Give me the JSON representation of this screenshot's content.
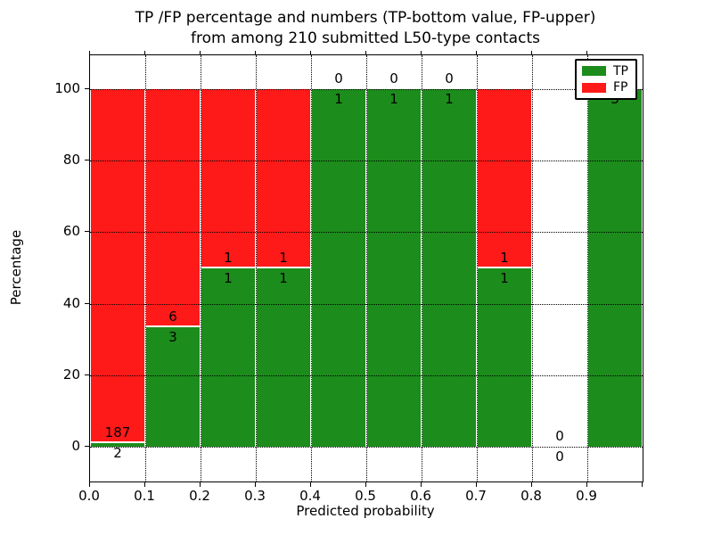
{
  "title": {
    "line1": "TP /FP percentage and numbers (TP-bottom value, FP-upper)",
    "line2": "from among 210 submitted L50-type contacts"
  },
  "axes": {
    "xlabel": "Predicted probability",
    "ylabel": "Percentage",
    "xticks": [
      "0.0",
      "0.1",
      "0.2",
      "0.3",
      "0.4",
      "0.5",
      "0.6",
      "0.7",
      "0.8",
      "0.9"
    ],
    "yticks": [
      "0",
      "20",
      "40",
      "60",
      "80",
      "100"
    ]
  },
  "legend": {
    "items": [
      {
        "label": "TP",
        "color": "#1c8c1c"
      },
      {
        "label": "FP",
        "color": "#ff1a1a"
      }
    ]
  },
  "colors": {
    "tp_green": "#1c8c1c",
    "fp_red": "#ff1a1a",
    "grid": "#000000"
  },
  "chart_data": {
    "type": "bar",
    "stacked": true,
    "normalized_to_percent": true,
    "title": "TP /FP percentage and numbers (TP-bottom value, FP-upper) from among 210 submitted L50-type contacts",
    "xlabel": "Predicted probability",
    "ylabel": "Percentage",
    "xlim": [
      0.0,
      1.0
    ],
    "ylim": [
      -10,
      110
    ],
    "grid": true,
    "legend_position": "upper right",
    "categories": [
      "0.0-0.1",
      "0.1-0.2",
      "0.2-0.3",
      "0.3-0.4",
      "0.4-0.5",
      "0.5-0.6",
      "0.6-0.7",
      "0.7-0.8",
      "0.8-0.9",
      "0.9-1.0"
    ],
    "series": [
      {
        "name": "TP",
        "color": "#1c8c1c",
        "values": [
          2,
          3,
          1,
          1,
          1,
          1,
          1,
          1,
          0,
          3
        ]
      },
      {
        "name": "FP",
        "color": "#ff1a1a",
        "values": [
          187,
          6,
          1,
          1,
          0,
          0,
          0,
          1,
          0,
          0
        ]
      }
    ],
    "green_pct": [
      1.058,
      33.333,
      50,
      50,
      100,
      100,
      100,
      50,
      0,
      100
    ],
    "total_contacts": 210
  }
}
